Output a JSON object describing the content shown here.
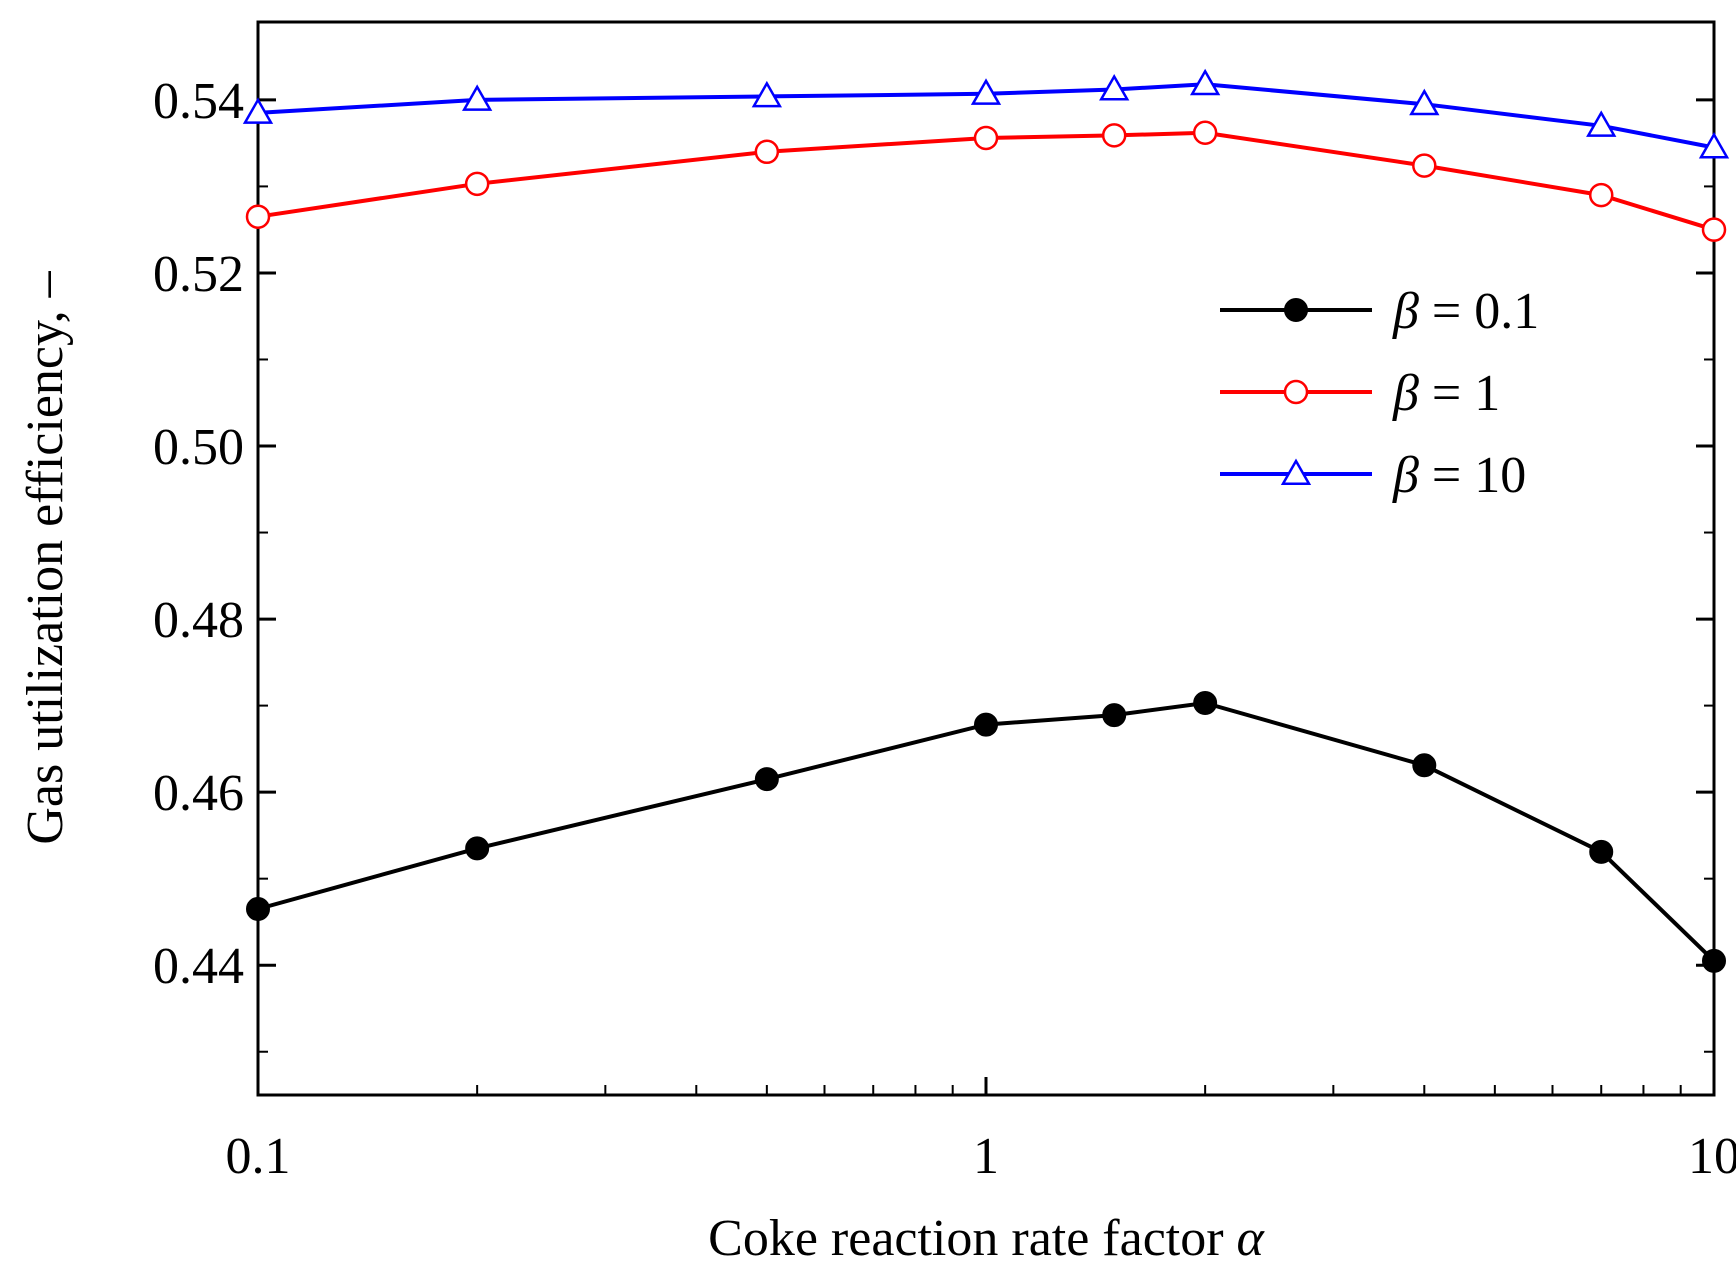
{
  "chart_data": {
    "type": "line",
    "title": "",
    "xlabel": "Coke reaction rate factor",
    "xlabel_symbol": "α",
    "ylabel": "Gas utilization efficiency, –",
    "xscale": "log",
    "xlim": [
      0.1,
      10
    ],
    "ylim": [
      0.425,
      0.549
    ],
    "grid": false,
    "legend_position": "right",
    "x_ticks": [
      0.1,
      1,
      10
    ],
    "x_tick_labels": [
      "0.1",
      "1",
      "10"
    ],
    "y_ticks": [
      0.44,
      0.46,
      0.48,
      0.5,
      0.52,
      0.54
    ],
    "y_tick_labels": [
      "0.44",
      "0.46",
      "0.48",
      "0.50",
      "0.52",
      "0.54"
    ],
    "x": [
      0.1,
      0.2,
      0.5,
      1,
      1.5,
      2,
      4,
      7,
      10
    ],
    "series": [
      {
        "name": "β = 0.1",
        "symbol": "β",
        "value_label": "= 0.1",
        "color": "#000000",
        "marker": "filled-circle",
        "values": [
          0.4465,
          0.4535,
          0.4615,
          0.4678,
          0.4689,
          0.4703,
          0.4631,
          0.4531,
          0.4405
        ]
      },
      {
        "name": "β = 1",
        "symbol": "β",
        "value_label": "= 1",
        "color": "#ff0000",
        "marker": "open-circle",
        "values": [
          0.5265,
          0.5303,
          0.534,
          0.5356,
          0.5359,
          0.5362,
          0.5324,
          0.529,
          0.525
        ]
      },
      {
        "name": "β = 10",
        "symbol": "β",
        "value_label": "= 10",
        "color": "#0000ff",
        "marker": "open-triangle",
        "values": [
          0.5385,
          0.54,
          0.5404,
          0.5407,
          0.5412,
          0.5418,
          0.5395,
          0.537,
          0.5345
        ]
      }
    ]
  }
}
